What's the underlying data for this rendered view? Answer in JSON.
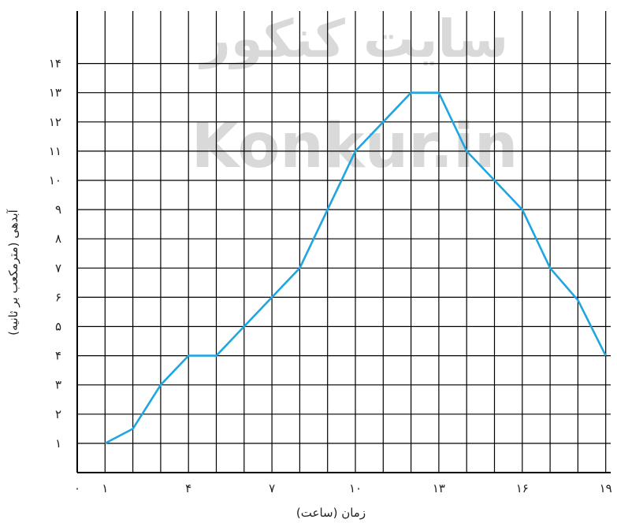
{
  "chart_data": {
    "type": "line",
    "title": "",
    "xlabel": "زمان (ساعت)",
    "ylabel": "آبدهی (مترمکعب بر ثانیه)",
    "xlim": [
      0,
      19
    ],
    "ylim": [
      0,
      14
    ],
    "grid": true,
    "x_tick_labels": [
      {
        "x": 0,
        "label": "۰"
      },
      {
        "x": 1,
        "label": "۱"
      },
      {
        "x": 4,
        "label": "۴"
      },
      {
        "x": 7,
        "label": "۷"
      },
      {
        "x": 10,
        "label": "۱۰"
      },
      {
        "x": 13,
        "label": "۱۳"
      },
      {
        "x": 16,
        "label": "۱۶"
      },
      {
        "x": 19,
        "label": "۱۹"
      }
    ],
    "y_tick_labels": [
      {
        "y": 1,
        "label": "۱"
      },
      {
        "y": 2,
        "label": "۲"
      },
      {
        "y": 3,
        "label": "۳"
      },
      {
        "y": 4,
        "label": "۴"
      },
      {
        "y": 5,
        "label": "۵"
      },
      {
        "y": 6,
        "label": "۶"
      },
      {
        "y": 7,
        "label": "۷"
      },
      {
        "y": 8,
        "label": "۸"
      },
      {
        "y": 9,
        "label": "۹"
      },
      {
        "y": 10,
        "label": "۱۰"
      },
      {
        "y": 11,
        "label": "۱۱"
      },
      {
        "y": 12,
        "label": "۱۲"
      },
      {
        "y": 13,
        "label": "۱۳"
      },
      {
        "y": 14,
        "label": "۱۴"
      }
    ],
    "series": [
      {
        "x": [
          1,
          2,
          3,
          4,
          5,
          6,
          7,
          8,
          9,
          10,
          11,
          12,
          13,
          14,
          15,
          16,
          17,
          18,
          19
        ],
        "y": [
          1,
          1.5,
          3,
          4,
          4,
          5,
          6,
          7,
          9,
          11,
          12,
          13,
          13,
          11,
          10,
          9,
          7,
          5.9,
          4
        ],
        "color": "#1fa6e0"
      }
    ],
    "grid_color": "#000000",
    "watermark": [
      "سایت کنکور",
      "Konkur.in"
    ]
  }
}
